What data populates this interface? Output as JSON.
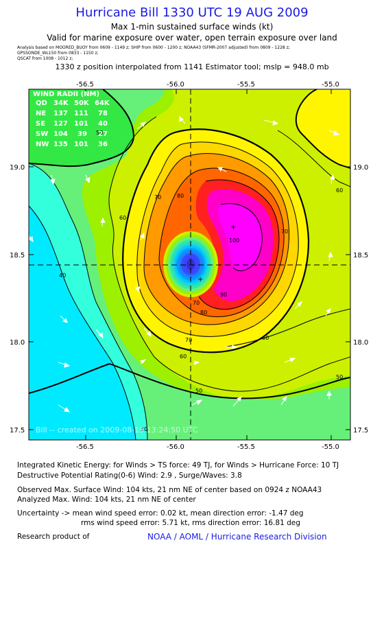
{
  "header": {
    "title": "Hurricane Bill 1330 UTC 19 AUG 2009",
    "subtitle1": "Max 1-min sustained surface winds (kt)",
    "subtitle2": "Valid for marine exposure over water, open terrain exposure over land",
    "sources": [
      "Analysis based on  MOORED_BUOY from 0609 - 1149 z;  SHIP from 0600 - 1200 z;  NOAA43 (SFMR-2007 adjusted) from 0809 - 1228 z;",
      "GPSSONDE_WL150 from 0833 - 1150 z;",
      "QSCAT from 1008 - 1012 z;"
    ],
    "position_note": "1330 z position interpolated from 1141 Estimator tool; mslp = 948.0 mb"
  },
  "wind_radii": {
    "title": "WIND RADII (NM)",
    "header": [
      "QD",
      "34K",
      "50K",
      "64K"
    ],
    "rows": [
      [
        "NE",
        "137",
        "111",
        "78"
      ],
      [
        "SE",
        "127",
        "101",
        "40"
      ],
      [
        "SW",
        "104",
        "39",
        "27"
      ],
      [
        "NW",
        "135",
        "101",
        "36"
      ]
    ]
  },
  "watermark": "Bill -- created on 2009-08-19 13:24:50 UTC",
  "chart_data": {
    "type": "contour",
    "variable": "Max 1-min sustained surface winds (kt)",
    "x_ticks": [
      "-56.5",
      "-56.0",
      "-55.5",
      "-55.0"
    ],
    "x_tick_values": [
      -56.5,
      -56.0,
      -55.5,
      -55.0
    ],
    "y_ticks": [
      "19.0",
      "18.5",
      "18.0",
      "17.5"
    ],
    "y_tick_values": [
      19.0,
      18.5,
      18.0,
      17.5
    ],
    "xlim": [
      -56.85,
      -55.02
    ],
    "ylim": [
      17.45,
      19.44
    ],
    "center": {
      "lon": -55.83,
      "lat": 18.44
    },
    "max_wind_location": {
      "lon": -55.6,
      "lat": 18.66
    },
    "contour_levels": [
      40,
      50,
      60,
      70,
      80,
      90,
      100
    ],
    "contour_labels": [
      "30",
      "40",
      "50",
      "50",
      "50",
      "60",
      "60",
      "60",
      "60",
      "70",
      "70",
      "70",
      "70",
      "80",
      "80",
      "90",
      "100"
    ],
    "colors": {
      "lt30": "#00eaff",
      "30-40": "#33ffdd",
      "40-50": "#66f07a",
      "50-60": "#9cf000",
      "60-64": "#ccf000",
      "64-70": "#fff500",
      "70-75": "#ffd700",
      "75-80": "#ff9a00",
      "80-90": "#ff6600",
      "90-95": "#ff3030",
      "95-100": "#ff00cc",
      "100+": "#ff00ff",
      "eye": "#4040ff"
    }
  },
  "footer": {
    "ike": "Integrated Kinetic Energy:  for Winds > TS force: 49 TJ,  for Winds > Hurricane Force: 10 TJ",
    "dpr": "Destructive Potential Rating(0-6)   Wind: 2.9 , Surge/Waves: 3.8",
    "obs_max": "Observed Max. Surface Wind: 104 kts, 21 nm NE of center based on 0924 z NOAA43",
    "ana_max": "Analyzed Max. Wind: 104 kts, 21 nm NE of center",
    "uncert1": "Uncertainty -> mean wind speed error: 0.02 kt,   mean direction error:  -1.47 deg",
    "uncert2": "rms wind speed error: 5.71 kt,   rms direction error: 16.81 deg",
    "research_label": "Research product of",
    "research_org": "NOAA / AOML / Hurricane Research Division"
  }
}
